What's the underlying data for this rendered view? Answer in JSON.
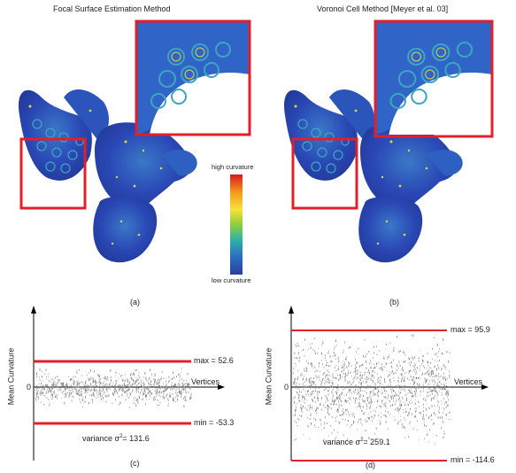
{
  "panels": {
    "a": {
      "title": "Focal Surface Estimation Method",
      "caption": "(a)"
    },
    "b": {
      "title": "Voronoi Cell Method [Meyer et al. 03]",
      "caption": "(b)"
    },
    "c": {
      "caption": "(c)"
    },
    "d": {
      "caption": "(d)"
    }
  },
  "colorbar": {
    "high_label": "high curvature",
    "low_label": "low curvature",
    "colors": [
      "#d7191c",
      "#f59a1b",
      "#f7e23a",
      "#8fce3b",
      "#2fb3a8",
      "#2b6dc2",
      "#2b3f9e"
    ]
  },
  "highlight_color": "#e0202a",
  "surface_colors": {
    "base": "#2a48b5",
    "mid": "#2d9bbd",
    "high": "#d8d84a"
  },
  "chart_data": [
    {
      "type": "scatter",
      "ylabel": "Mean Curvature",
      "xlabel": "Vertices",
      "zero_label": "0",
      "max_label": "max =  52.6",
      "max_value": 52.6,
      "min_label": "min =  -53.3",
      "min_value": -53.3,
      "variance_label": "variance σ",
      "variance_sup": "2",
      "variance_value": "= 131.6",
      "ylim": [
        -90,
        110
      ]
    },
    {
      "type": "scatter",
      "ylabel": "Mean Curvature",
      "xlabel": "Vertices",
      "zero_label": "0",
      "max_label": "max =  95.9",
      "max_value": 95.9,
      "min_label": "min =  -114.6",
      "min_value": -114.6,
      "variance_label": "variance σ",
      "variance_sup": "2",
      "variance_value": "= 259.1",
      "ylim": [
        -120,
        120
      ]
    }
  ]
}
